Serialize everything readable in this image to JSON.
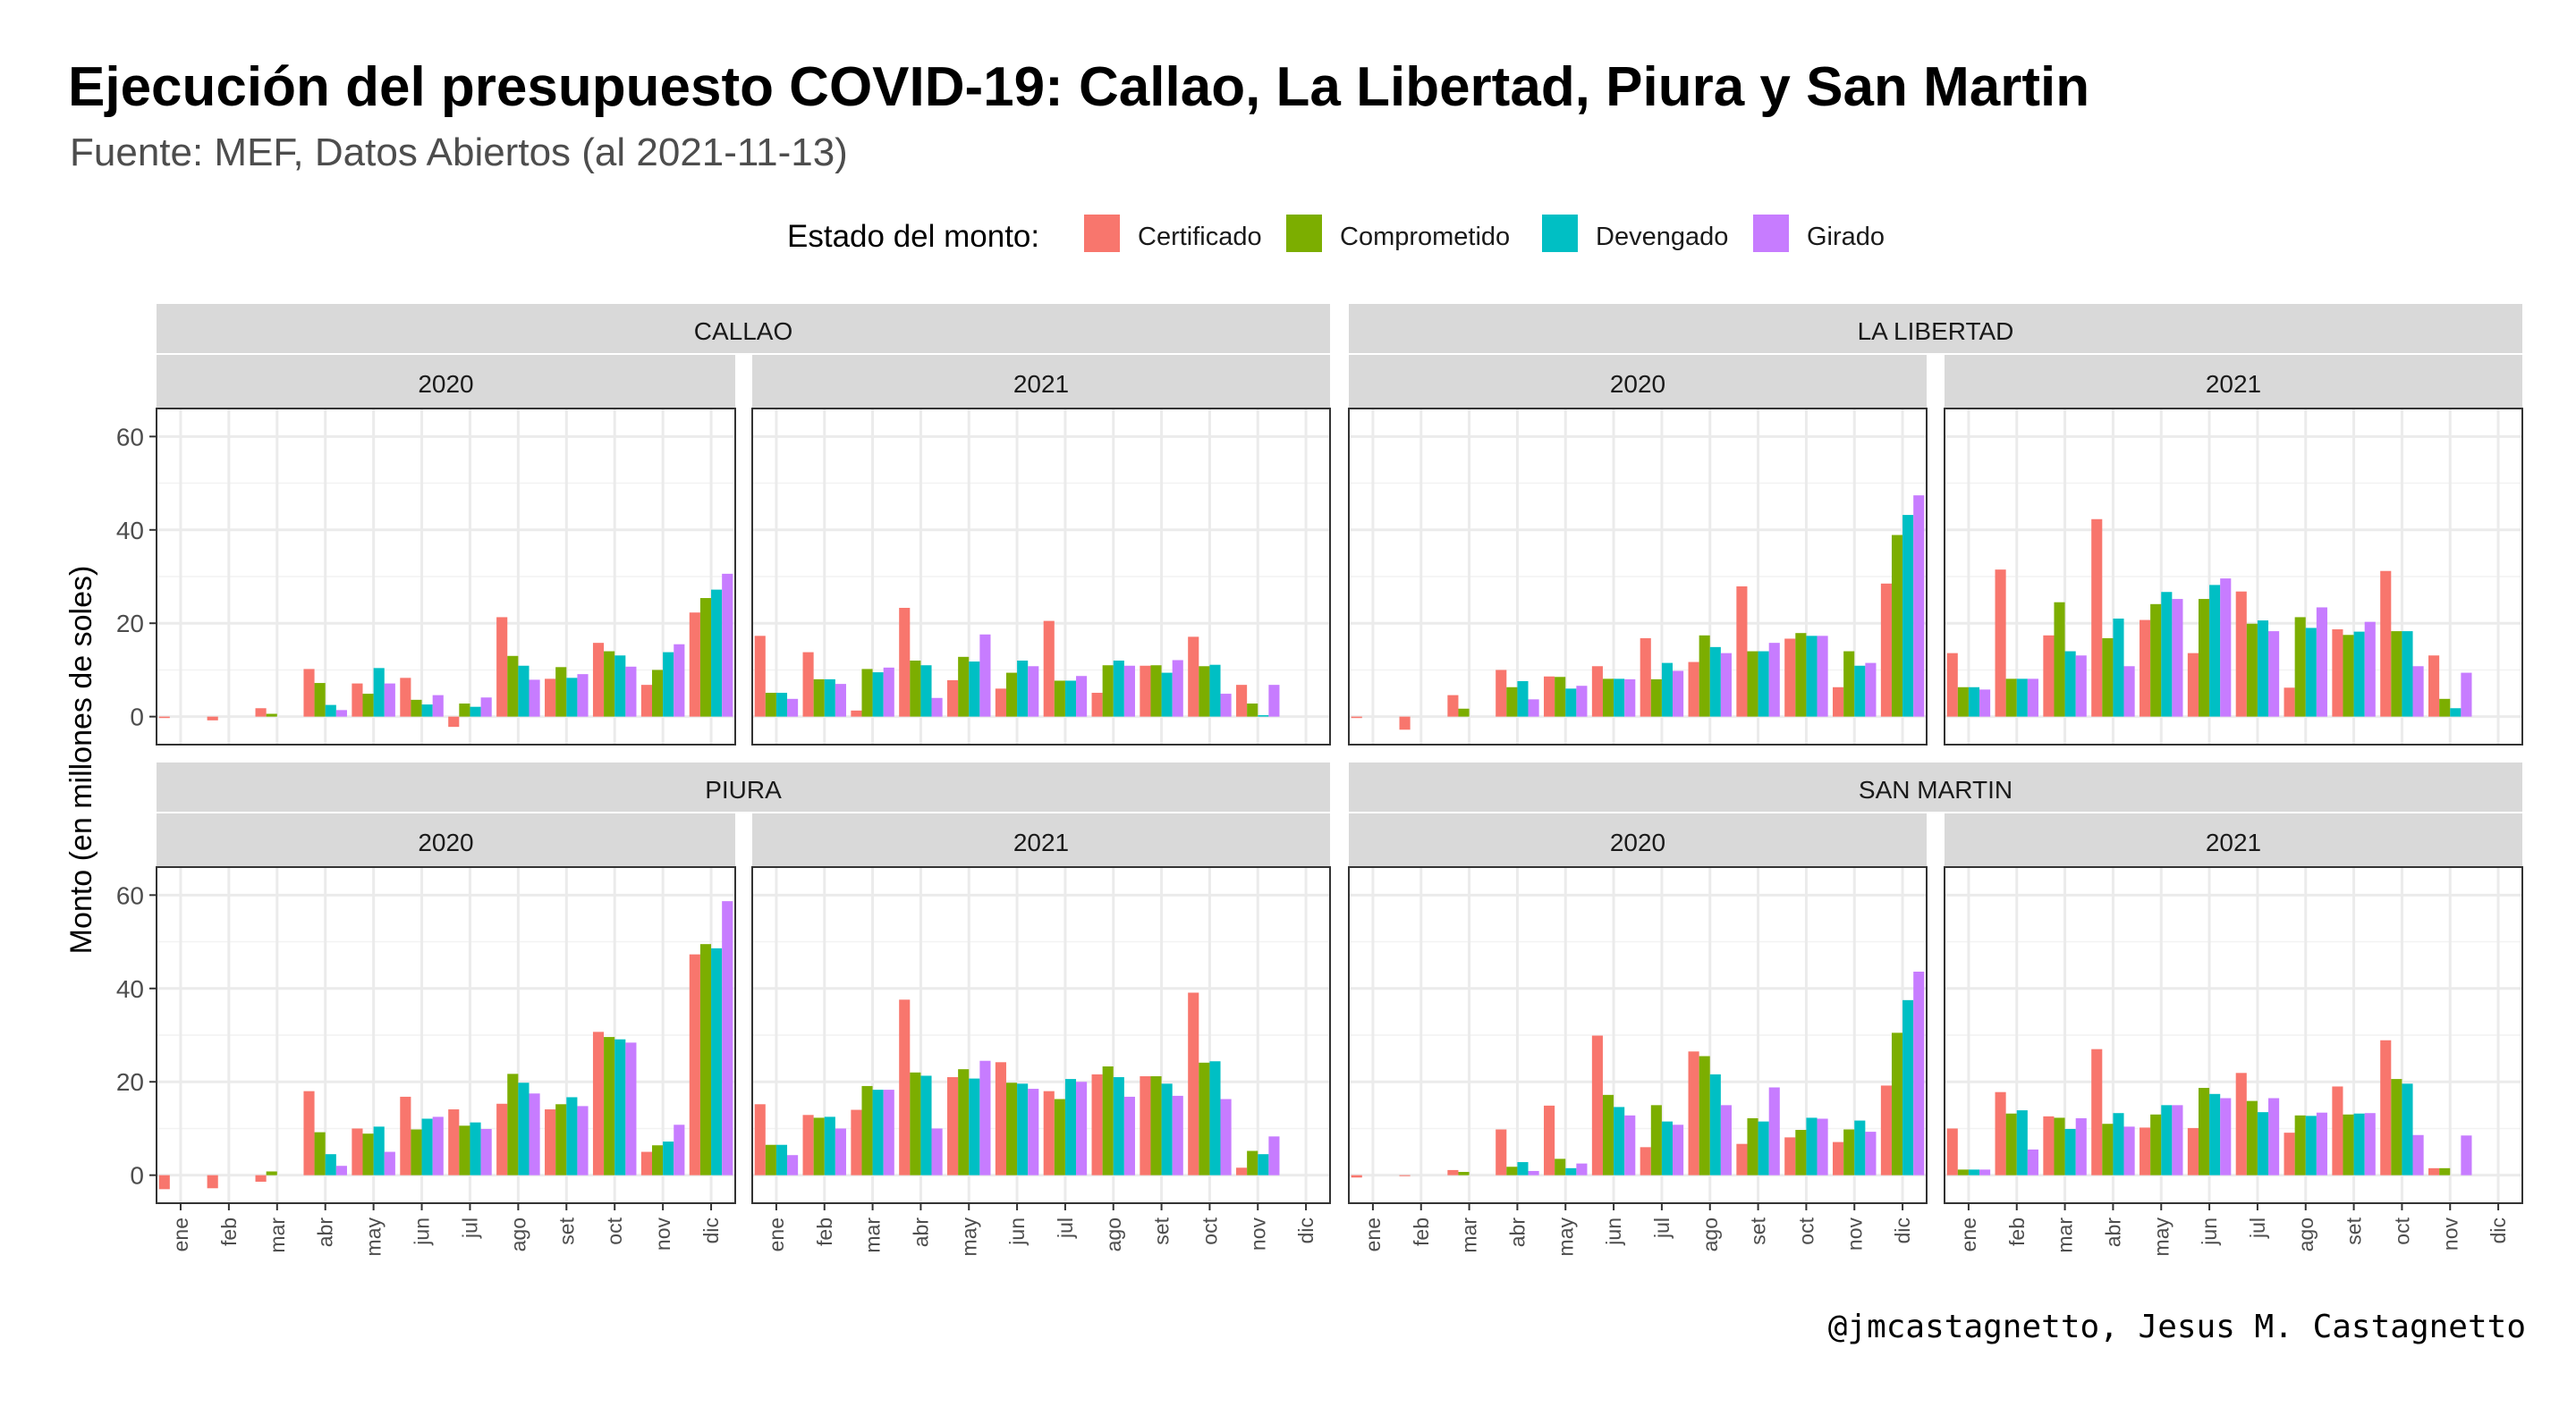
{
  "title": "Ejecución del presupuesto COVID-19: Callao, La Libertad, Piura y San Martin",
  "subtitle": "Fuente: MEF, Datos Abiertos (al 2021-11-13)",
  "caption": "@jmcastagnetto, Jesus M. Castagnetto",
  "chart_data": {
    "type": "bar",
    "ylabel": "Monto (en millones de soles)",
    "xlabel": "",
    "ylim": [
      -6,
      66
    ],
    "yticks": [
      0,
      20,
      40,
      60
    ],
    "grid": true,
    "legend": {
      "title": "Estado del monto:",
      "placement": "top",
      "entries": [
        {
          "name": "Certificado",
          "color": "#F8766D"
        },
        {
          "name": "Comprometido",
          "color": "#7CAE00"
        },
        {
          "name": "Devengado",
          "color": "#00BFC4"
        },
        {
          "name": "Girado",
          "color": "#C77CFF"
        }
      ]
    },
    "months": [
      "ene",
      "feb",
      "mar",
      "abr",
      "may",
      "jun",
      "jul",
      "ago",
      "set",
      "oct",
      "nov",
      "dic"
    ],
    "regions": [
      {
        "name": "CALLAO",
        "panels": [
          {
            "year": "2020",
            "values": [
              [
                -0.3,
                null,
                null,
                null
              ],
              [
                -0.8,
                null,
                null,
                null
              ],
              [
                1.8,
                0.6,
                null,
                null
              ],
              [
                10.2,
                7.2,
                2.5,
                1.4
              ],
              [
                7.1,
                4.9,
                10.4,
                7.1
              ],
              [
                8.3,
                3.6,
                2.6,
                4.6
              ],
              [
                -2.2,
                2.8,
                2.1,
                4.1
              ],
              [
                21.3,
                13.0,
                10.9,
                7.9
              ],
              [
                8.1,
                10.6,
                8.3,
                9.1
              ],
              [
                15.8,
                14.0,
                13.1,
                10.7
              ],
              [
                6.8,
                10.0,
                13.8,
                15.5
              ],
              [
                22.3,
                25.4,
                27.2,
                30.6
              ]
            ]
          },
          {
            "year": "2021",
            "values": [
              [
                17.3,
                5.1,
                5.1,
                3.8
              ],
              [
                13.8,
                8.0,
                8.0,
                7.0
              ],
              [
                1.3,
                10.2,
                9.5,
                10.5
              ],
              [
                23.3,
                12.0,
                11.0,
                4.0
              ],
              [
                7.8,
                12.8,
                11.8,
                17.6
              ],
              [
                6.0,
                9.4,
                12.0,
                10.8
              ],
              [
                20.5,
                7.7,
                7.7,
                8.7
              ],
              [
                5.1,
                11.0,
                12.0,
                10.9
              ],
              [
                10.9,
                11.0,
                9.4,
                12.1
              ],
              [
                17.1,
                10.8,
                11.1,
                4.9
              ],
              [
                6.8,
                2.8,
                0.3,
                6.8
              ],
              [
                null,
                null,
                null,
                null
              ]
            ]
          }
        ]
      },
      {
        "name": "LA LIBERTAD",
        "panels": [
          {
            "year": "2020",
            "values": [
              [
                -0.3,
                null,
                null,
                null
              ],
              [
                -2.8,
                null,
                null,
                null
              ],
              [
                4.6,
                1.7,
                null,
                null
              ],
              [
                10.0,
                6.3,
                7.6,
                3.7
              ],
              [
                8.6,
                8.5,
                6.0,
                6.6
              ],
              [
                10.8,
                8.1,
                8.1,
                8.0
              ],
              [
                16.8,
                8.0,
                11.5,
                9.8
              ],
              [
                11.7,
                17.4,
                14.9,
                13.6
              ],
              [
                27.9,
                14.0,
                14.0,
                15.8
              ],
              [
                16.7,
                17.9,
                17.3,
                17.3
              ],
              [
                6.3,
                14.0,
                10.9,
                11.5
              ],
              [
                28.5,
                38.9,
                43.2,
                47.4
              ]
            ]
          },
          {
            "year": "2021",
            "values": [
              [
                13.6,
                6.3,
                6.3,
                5.8
              ],
              [
                31.5,
                8.1,
                8.1,
                8.1
              ],
              [
                17.4,
                24.5,
                14.0,
                13.1
              ],
              [
                42.3,
                16.8,
                21.0,
                10.8
              ],
              [
                20.7,
                24.1,
                26.7,
                25.2
              ],
              [
                13.6,
                25.2,
                28.2,
                29.6
              ],
              [
                26.8,
                19.9,
                20.6,
                18.3
              ],
              [
                6.2,
                21.3,
                19.0,
                23.4
              ],
              [
                18.7,
                17.5,
                18.2,
                20.3
              ],
              [
                31.2,
                18.3,
                18.3,
                10.8
              ],
              [
                13.1,
                3.8,
                1.8,
                9.4
              ],
              [
                null,
                null,
                null,
                null
              ]
            ]
          }
        ]
      },
      {
        "name": "PIURA",
        "panels": [
          {
            "year": "2020",
            "values": [
              [
                -3.0,
                null,
                null,
                null
              ],
              [
                -2.8,
                null,
                null,
                null
              ],
              [
                -1.4,
                0.8,
                null,
                null
              ],
              [
                18.0,
                9.2,
                4.5,
                2.0
              ],
              [
                10.0,
                8.9,
                10.4,
                5.0
              ],
              [
                16.8,
                9.8,
                12.1,
                12.5
              ],
              [
                14.1,
                10.6,
                11.3,
                9.9
              ],
              [
                15.3,
                21.7,
                19.8,
                17.5
              ],
              [
                14.1,
                15.2,
                16.7,
                14.8
              ],
              [
                30.7,
                29.6,
                29.1,
                28.4
              ],
              [
                5.0,
                6.4,
                7.2,
                10.8
              ],
              [
                47.3,
                49.5,
                48.6,
                58.7
              ]
            ]
          },
          {
            "year": "2021",
            "values": [
              [
                15.2,
                6.5,
                6.5,
                4.3
              ],
              [
                12.9,
                12.3,
                12.5,
                10.0
              ],
              [
                14.0,
                19.1,
                18.3,
                18.3
              ],
              [
                37.6,
                22.0,
                21.3,
                10.0
              ],
              [
                21.0,
                22.7,
                20.7,
                24.5
              ],
              [
                24.2,
                19.8,
                19.6,
                18.5
              ],
              [
                18.0,
                16.3,
                20.6,
                20.0
              ],
              [
                21.6,
                23.3,
                21.0,
                16.8
              ],
              [
                21.2,
                21.2,
                19.6,
                17.0
              ],
              [
                39.1,
                24.1,
                24.4,
                16.3
              ],
              [
                1.6,
                5.2,
                4.5,
                8.3
              ],
              [
                null,
                null,
                null,
                null
              ]
            ]
          }
        ]
      },
      {
        "name": "SAN MARTIN",
        "panels": [
          {
            "year": "2020",
            "values": [
              [
                -0.5,
                null,
                null,
                null
              ],
              [
                -0.2,
                null,
                null,
                null
              ],
              [
                1.1,
                0.7,
                null,
                null
              ],
              [
                9.8,
                1.8,
                2.8,
                0.9
              ],
              [
                14.9,
                3.5,
                1.5,
                2.5
              ],
              [
                29.9,
                17.2,
                14.6,
                12.8
              ],
              [
                6.0,
                15.0,
                11.5,
                10.8
              ],
              [
                26.5,
                25.5,
                21.6,
                15.0
              ],
              [
                6.7,
                12.2,
                11.5,
                18.8
              ],
              [
                8.1,
                9.7,
                12.3,
                12.1
              ],
              [
                7.1,
                9.8,
                11.7,
                9.3
              ],
              [
                19.2,
                30.5,
                37.5,
                43.6
              ]
            ]
          },
          {
            "year": "2021",
            "values": [
              [
                10.0,
                1.2,
                1.2,
                1.2
              ],
              [
                17.8,
                13.2,
                13.9,
                5.5
              ],
              [
                12.6,
                12.3,
                9.9,
                12.2
              ],
              [
                27.0,
                11.0,
                13.3,
                10.4
              ],
              [
                10.2,
                13.0,
                15.0,
                15.0
              ],
              [
                10.1,
                18.7,
                17.4,
                16.5
              ],
              [
                21.9,
                15.9,
                13.5,
                16.5
              ],
              [
                9.1,
                12.8,
                12.7,
                13.4
              ],
              [
                19.0,
                13.0,
                13.2,
                13.3
              ],
              [
                28.9,
                20.6,
                19.6,
                8.6
              ],
              [
                1.5,
                1.5,
                null,
                8.5
              ],
              [
                null,
                null,
                null,
                null
              ]
            ]
          }
        ]
      }
    ]
  }
}
